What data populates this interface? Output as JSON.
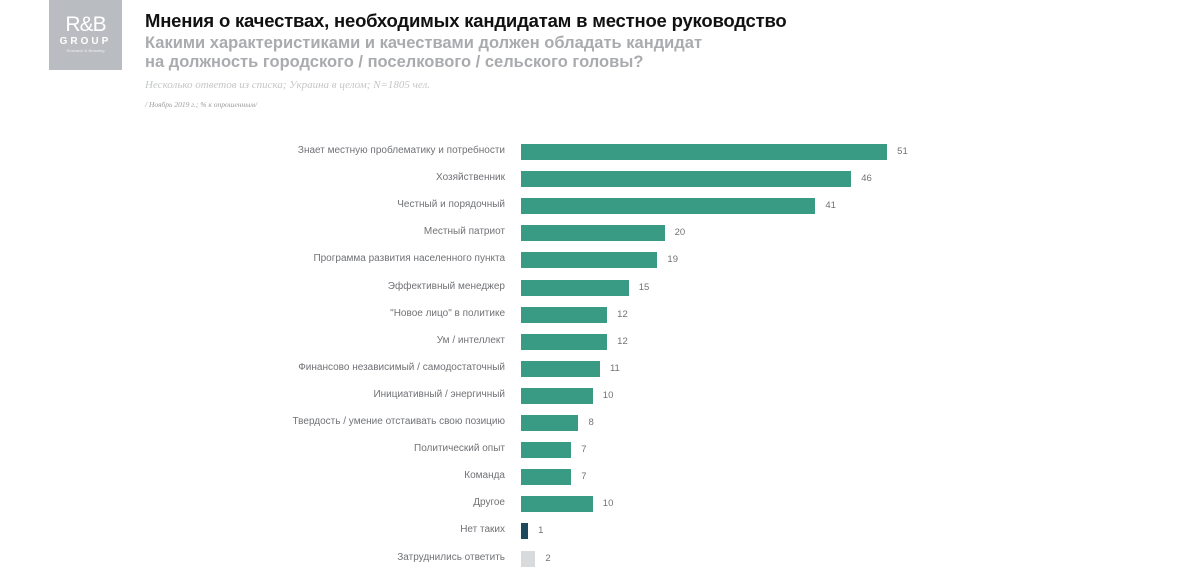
{
  "logo": {
    "line1": "R&B",
    "line2": "GROUP",
    "tagline": "Research & Branding"
  },
  "header": {
    "title": "Мнения о качествах, необходимых кандидатам в местное руководство",
    "subtitle": "Какими характеристиками и качествами должен обладать кандидат\nна должность городского / поселкового / сельского головы?",
    "note": "Несколько ответов из списка; Украина в целом; N=1805 чел.",
    "period": "/ Ноябрь 2019 г.; % к опрошенным/"
  },
  "colors": {
    "main": "#3a9b85",
    "none": "#1d4a5c",
    "hard_to_say": "#d9dadb"
  },
  "chart_data": {
    "type": "bar",
    "orientation": "horizontal",
    "title": "Мнения о качествах, необходимых кандидатам в местное руководство",
    "subtitle": "Какими характеристиками и качествами должен обладать кандидат на должность городского / поселкового / сельского головы?",
    "xlabel": "% к опрошенным",
    "ylabel": "",
    "grid": false,
    "legend": null,
    "categories": [
      "Знает местную проблематику и потребности",
      "Хозяйственник",
      "Честный и порядочный",
      "Местный патриот",
      "Программа развития населенного пункта",
      "Эффективный менеджер",
      "\"Новое лицо\" в политике",
      "Ум / интеллект",
      "Финансово независимый / самодостаточный",
      "Инициативный / энергичный",
      "Твердость / умение отстаивать свою позицию",
      "Политический опыт",
      "Команда",
      "Другое",
      "Нет таких",
      "Затруднились ответить"
    ],
    "values": [
      51,
      46,
      41,
      20,
      19,
      15,
      12,
      12,
      11,
      10,
      8,
      7,
      7,
      10,
      1,
      2
    ],
    "bar_colors": [
      "main",
      "main",
      "main",
      "main",
      "main",
      "main",
      "main",
      "main",
      "main",
      "main",
      "main",
      "main",
      "main",
      "main",
      "none",
      "hard_to_say"
    ],
    "value_labels": [
      "51",
      "46",
      "41",
      "20",
      "19",
      "15",
      "12",
      "12",
      "11",
      "10",
      "8",
      "7",
      "7",
      "10",
      "1",
      "2"
    ]
  }
}
